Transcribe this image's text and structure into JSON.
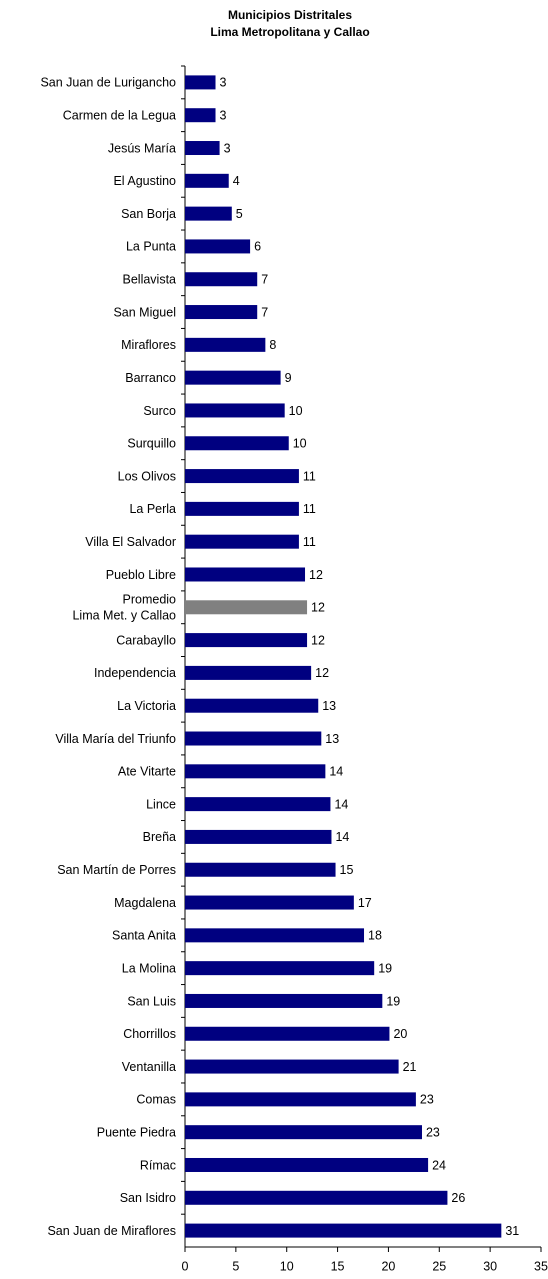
{
  "chart_data": {
    "type": "bar",
    "orientation": "horizontal",
    "title": "Municipios Distritales",
    "subtitle": "Lima Metropolitana y Callao",
    "categories": [
      "San Juan de Lurigancho",
      "Carmen de la Legua",
      "Jesús María",
      "El Agustino",
      "San Borja",
      "La Punta",
      "Bellavista",
      "San Miguel",
      "Miraflores",
      "Barranco",
      "Surco",
      "Surquillo",
      "Los Olivos",
      "La Perla",
      "Villa El Salvador",
      "Pueblo Libre",
      "Promedio\nLima Met. y Callao",
      "Carabayllo",
      "Independencia",
      "La Victoria",
      "Villa María del Triunfo",
      "Ate Vitarte",
      "Lince",
      "Breña",
      "San Martín de Porres",
      "Magdalena",
      "Santa Anita",
      "La Molina",
      "San Luis",
      "Chorrillos",
      "Ventanilla",
      "Comas",
      "Puente Piedra",
      "Rímac",
      "San Isidro",
      "San Juan de Miraflores"
    ],
    "values": [
      3.0,
      3.0,
      3.4,
      4.3,
      4.6,
      6.4,
      7.1,
      7.1,
      7.9,
      9.4,
      9.8,
      10.2,
      11.2,
      11.2,
      11.2,
      11.8,
      12.0,
      12.0,
      12.4,
      13.1,
      13.4,
      13.8,
      14.3,
      14.4,
      14.8,
      16.6,
      17.6,
      18.6,
      19.4,
      20.1,
      21.0,
      22.7,
      23.3,
      23.9,
      25.8,
      31.1
    ],
    "value_labels": [
      "3",
      "3",
      "3",
      "4",
      "5",
      "6",
      "7",
      "7",
      "8",
      "9",
      "10",
      "10",
      "11",
      "11",
      "11",
      "12",
      "12",
      "12",
      "12",
      "13",
      "13",
      "14",
      "14",
      "14",
      "15",
      "17",
      "18",
      "19",
      "19",
      "20",
      "21",
      "23",
      "23",
      "24",
      "26",
      "31"
    ],
    "colors": [
      "#000080",
      "#000080",
      "#000080",
      "#000080",
      "#000080",
      "#000080",
      "#000080",
      "#000080",
      "#000080",
      "#000080",
      "#000080",
      "#000080",
      "#000080",
      "#000080",
      "#000080",
      "#000080",
      "#808080",
      "#000080",
      "#000080",
      "#000080",
      "#000080",
      "#000080",
      "#000080",
      "#000080",
      "#000080",
      "#000080",
      "#000080",
      "#000080",
      "#000080",
      "#000080",
      "#000080",
      "#000080",
      "#000080",
      "#000080",
      "#000080",
      "#000080"
    ],
    "xlim": [
      0,
      35
    ],
    "xticks": [
      0,
      5,
      10,
      15,
      20,
      25,
      30,
      35
    ],
    "grid": false
  }
}
